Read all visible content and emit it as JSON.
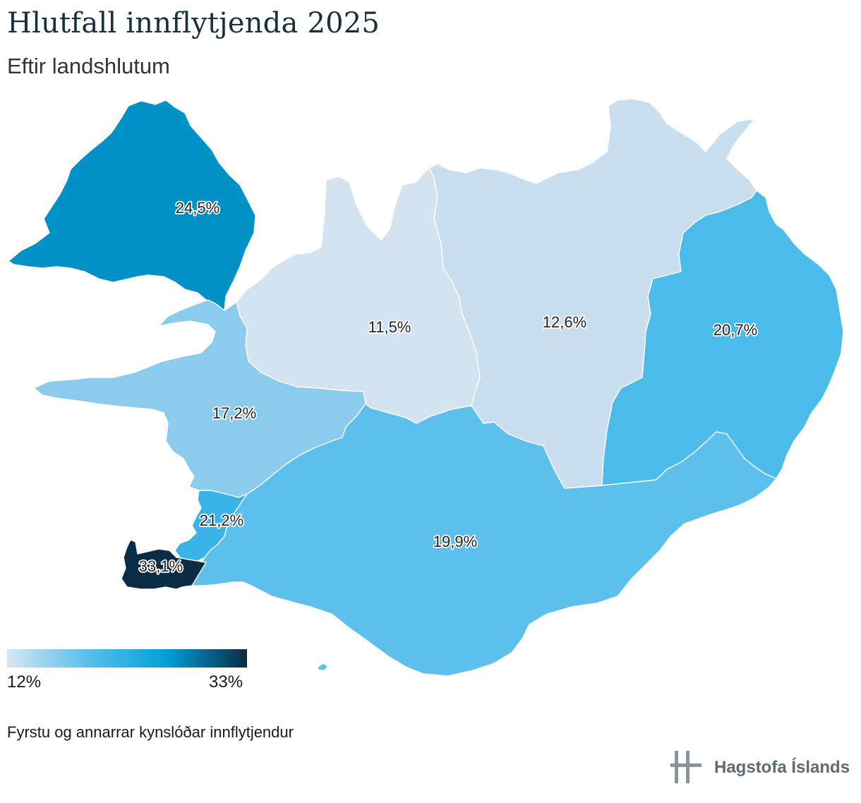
{
  "title": "Hlutfall innflytjenda 2025",
  "subtitle": "Eftir landshlutum",
  "regions": [
    {
      "id": "vestfirdir",
      "label": "24,5%",
      "value": 24.5,
      "color": "#0092c6"
    },
    {
      "id": "nordurland-vestra",
      "label": "11,5%",
      "value": 11.5,
      "color": "#d3e4f0"
    },
    {
      "id": "nordurland-eystra",
      "label": "12,6%",
      "value": 12.6,
      "color": "#c9dff0"
    },
    {
      "id": "austurland",
      "label": "20,7%",
      "value": 20.7,
      "color": "#4bbbea"
    },
    {
      "id": "vesturland",
      "label": "17,2%",
      "value": 17.2,
      "color": "#8acbee"
    },
    {
      "id": "hofudborgarsvaedid",
      "label": "21,2%",
      "value": 21.2,
      "color": "#3ab4e8"
    },
    {
      "id": "sudurland",
      "label": "19,9%",
      "value": 19.9,
      "color": "#5dc0ec"
    },
    {
      "id": "sudurnes",
      "label": "33,1%",
      "value": 33.1,
      "color": "#0b2c45"
    }
  ],
  "legend": {
    "min_label": "12%",
    "max_label": "33%",
    "min": 12,
    "max": 33,
    "colors": [
      "#d6e6f2",
      "#5bbfeb",
      "#00a0d8",
      "#0b2c45"
    ]
  },
  "footnote": "Fyrstu og annarrar kynslóðar innflytjendur",
  "brand": {
    "name": "Hagstofa Íslands",
    "icon": "hagstofa-logo-icon"
  }
}
